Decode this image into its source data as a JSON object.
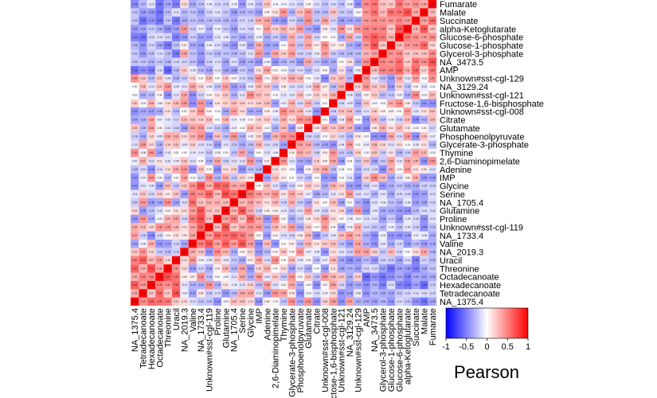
{
  "chart_data": {
    "type": "heatmap",
    "title": "",
    "xlabel": "",
    "ylabel": "",
    "x_categories": [
      "NA_1375.4",
      "Tetradecanoate",
      "Hexadecanoate",
      "Octadecanoate",
      "Threonine",
      "Uracil",
      "NA_2019.3",
      "Valine",
      "NA_1733.4",
      "Unknown#sst-cgl-119",
      "Proline",
      "Glutamine",
      "NA_1705.4",
      "Serine",
      "Glycine",
      "IMP",
      "Adenine",
      "2,6-Diaminopimelate",
      "Thymine",
      "Glycerate-3-phosphate",
      "Phosphoenolpyruvate",
      "Glutamate",
      "Citrate",
      "Unknown#sst-cgl-008",
      "Fructose-1,6-bisphosphate",
      "Unknown#sst-cgl-121",
      "NA_3129.24",
      "Unknown#sst-cgl-129",
      "AMP",
      "NA_3473.5",
      "Glycerol-3-phosphate",
      "Glucose-1-phosphate",
      "Glucose-6-phosphate",
      "alpha-Ketoglutarate",
      "Succinate",
      "Malate",
      "Fumarate"
    ],
    "y_categories": [
      "Fumarate",
      "Malate",
      "Succinate",
      "alpha-Ketoglutarate",
      "Glucose-6-phosphate",
      "Glucose-1-phosphate",
      "Glycerol-3-phosphate",
      "NA_3473.5",
      "AMP",
      "Unknown#sst-cgl-129",
      "NA_3129.24",
      "Unknown#sst-cgl-121",
      "Fructose-1,6-bisphosphate",
      "Unknown#sst-cgl-008",
      "Citrate",
      "Glutamate",
      "Phosphoenolpyruvate",
      "Glycerate-3-phosphate",
      "Thymine",
      "2,6-Diaminopimelate",
      "Adenine",
      "IMP",
      "Glycine",
      "Serine",
      "NA_1705.4",
      "Glutamine",
      "Proline",
      "Unknown#sst-cgl-119",
      "NA_1733.4",
      "Valine",
      "NA_2019.3",
      "Uracil",
      "Threonine",
      "Octadecanoate",
      "Hexadecanoate",
      "Tetradecanoate",
      "NA_1375.4"
    ],
    "legend": {
      "title": "Pearson",
      "ticks": [
        -1,
        -0.5,
        0,
        0.5,
        1
      ],
      "tick_labels": [
        "-1",
        "-0.5",
        "0",
        "0.5",
        "1"
      ],
      "range": [
        -1,
        1
      ],
      "colors": {
        "low": "#0000ff",
        "mid": "#ffffff",
        "high": "#ff0000"
      }
    },
    "grid": false
  }
}
